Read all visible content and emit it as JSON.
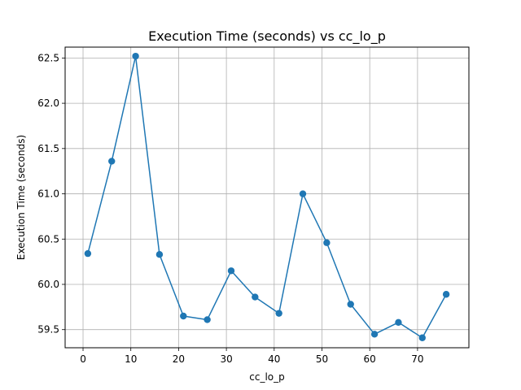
{
  "chart_data": {
    "type": "line",
    "title": "Execution Time (seconds) vs cc_lo_p",
    "xlabel": "cc_lo_p",
    "ylabel": "Execution Time (seconds)",
    "xlim": [
      -3.75,
      80.75
    ],
    "ylim": [
      59.3,
      62.62
    ],
    "xticks": [
      0,
      10,
      20,
      30,
      40,
      50,
      60,
      70
    ],
    "yticks": [
      59.5,
      60.0,
      60.5,
      61.0,
      61.5,
      62.0,
      62.5
    ],
    "ytick_labels": [
      "59.5",
      "60.0",
      "60.5",
      "61.0",
      "61.5",
      "62.0",
      "62.5"
    ],
    "grid": true,
    "series": [
      {
        "color": "#1f77b4",
        "marker": "circle",
        "x": [
          1,
          6,
          11,
          16,
          21,
          26,
          31,
          36,
          41,
          46,
          51,
          56,
          61,
          66,
          71,
          76
        ],
        "y": [
          60.34,
          61.36,
          62.52,
          60.33,
          59.65,
          59.61,
          60.15,
          59.86,
          59.68,
          61.0,
          60.46,
          59.78,
          59.45,
          59.58,
          59.41,
          59.89
        ]
      }
    ]
  }
}
